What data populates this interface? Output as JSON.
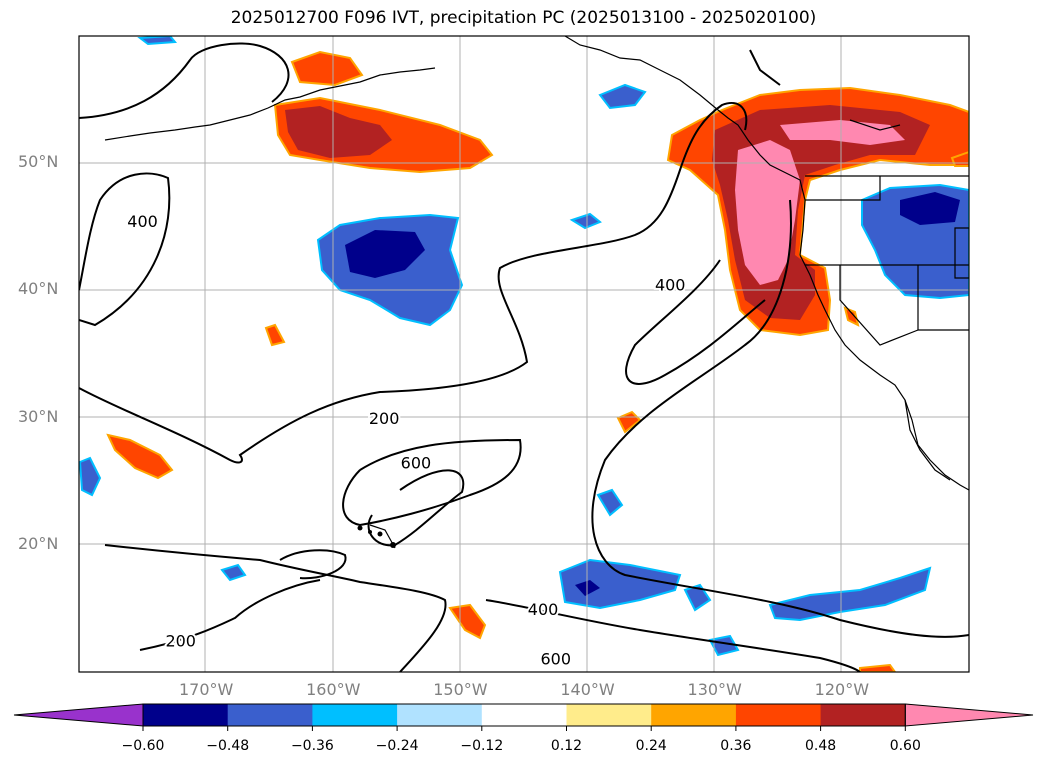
{
  "title": "2025012700 F096 IVT, precipitation PC (2025013100 - 2025020100)",
  "map": {
    "lat_labels": [
      {
        "text": "50°N",
        "lat": 50
      },
      {
        "text": "40°N",
        "lat": 40
      },
      {
        "text": "30°N",
        "lat": 30
      },
      {
        "text": "20°N",
        "lat": 20
      }
    ],
    "lon_labels": [
      {
        "text": "170°W",
        "lon": -170
      },
      {
        "text": "160°W",
        "lon": -160
      },
      {
        "text": "150°W",
        "lon": -150
      },
      {
        "text": "140°W",
        "lon": -140
      },
      {
        "text": "130°W",
        "lon": -130
      },
      {
        "text": "120°W",
        "lon": -120
      }
    ],
    "contour_labels": [
      {
        "text": "400",
        "lon": -175,
        "lat": 45
      },
      {
        "text": "200",
        "lon": -156,
        "lat": 29.5
      },
      {
        "text": "600",
        "lon": -153.5,
        "lat": 26
      },
      {
        "text": "400",
        "lon": -133.5,
        "lat": 40
      },
      {
        "text": "200",
        "lon": -172,
        "lat": 12
      },
      {
        "text": "400",
        "lon": -143.5,
        "lat": 14.5
      },
      {
        "text": "600",
        "lon": -142.5,
        "lat": 10.6
      }
    ]
  },
  "colorbar": {
    "ticks": [
      "−0.60",
      "−0.48",
      "−0.36",
      "−0.24",
      "−0.12",
      "0.12",
      "0.24",
      "0.36",
      "0.48",
      "0.60"
    ],
    "colors": [
      "#9932CC",
      "#00008B",
      "#3A5FCD",
      "#00BFFF",
      "#B0E2FF",
      "#FFFFFF",
      "#FFEC8B",
      "#FFA500",
      "#FF4500",
      "#B22222",
      "#FF88B0"
    ]
  }
}
